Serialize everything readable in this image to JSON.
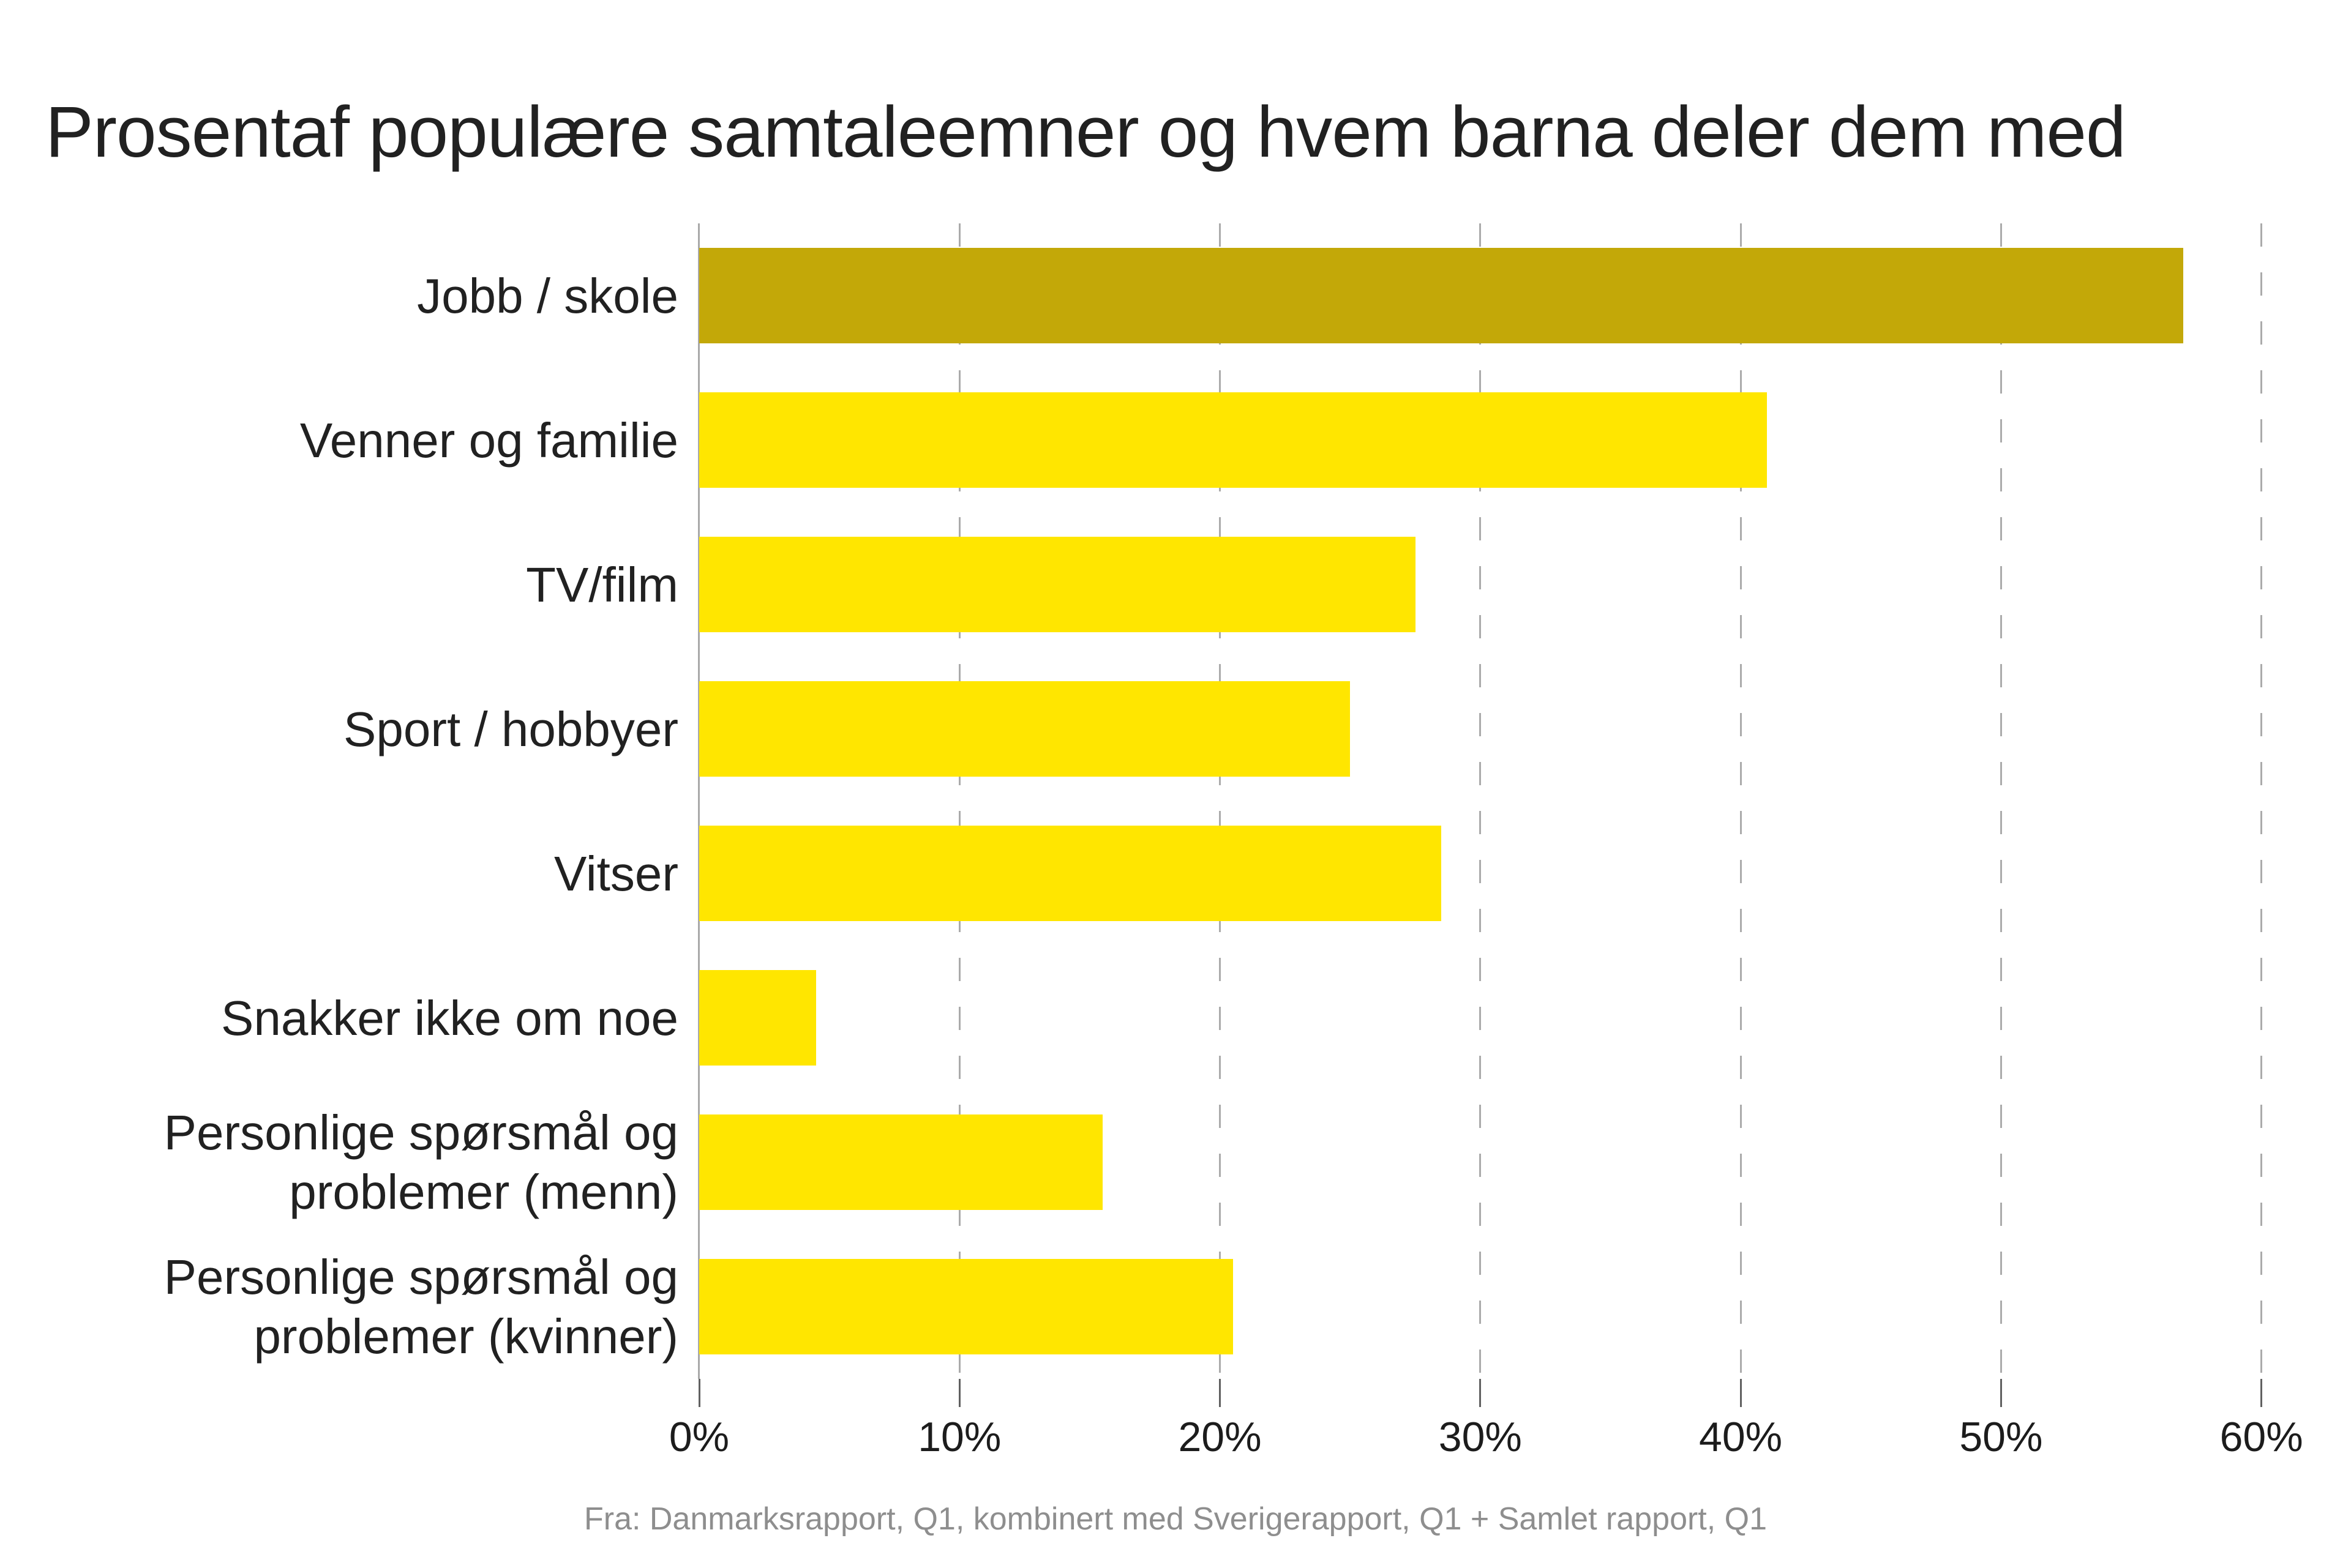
{
  "chart": {
    "title": "Prosentaf populære samtaleemner og hvem barna deler dem med",
    "source": "Fra: Danmarksrapport, Q1, kombinert med Sverigerapport, Q1 + Samlet rapport, Q1"
  },
  "chart_data": {
    "type": "bar",
    "orientation": "horizontal",
    "title": "Prosentaf populære samtaleemner og hvem barna deler dem med",
    "categories": [
      "Jobb / skole",
      "Venner og familie",
      "TV/film",
      "Sport / hobbyer",
      "Vitser",
      "Snakker ikke om noe",
      "Personlige spørsmål og problemer (menn)",
      "Personlige spørsmål og problemer (kvinner)"
    ],
    "category_lines": [
      [
        "Jobb / skole"
      ],
      [
        "Venner og familie"
      ],
      [
        "TV/film"
      ],
      [
        "Sport / hobbyer"
      ],
      [
        "Vitser"
      ],
      [
        "Snakker ikke om noe"
      ],
      [
        "Personlige spørsmål og",
        "problemer (menn)"
      ],
      [
        "Personlige spørsmål og",
        "problemer (kvinner)"
      ]
    ],
    "values": [
      57,
      41,
      27.5,
      25,
      28.5,
      4.5,
      15.5,
      20.5
    ],
    "unit": "%",
    "xlim": [
      0,
      62.5
    ],
    "x_ticks": [
      0,
      10,
      20,
      30,
      40,
      50,
      60
    ],
    "x_tick_labels": [
      "0%",
      "10%",
      "20%",
      "30%",
      "40%",
      "50%",
      "60%"
    ],
    "grid": "vertical-dashed",
    "legend": false,
    "colors": {
      "highlight_bar": "#C3A808",
      "default_bar": "#FFE600",
      "gridline": "#ABABAB",
      "axis_line": "#A9A9A9",
      "tick": "#616161",
      "text": "#212121",
      "source_text": "#8E8E8E"
    },
    "bar_colors": [
      "#C3A808",
      "#FFE600",
      "#FFE600",
      "#FFE600",
      "#FFE600",
      "#FFE600",
      "#FFE600",
      "#FFE600"
    ],
    "source": "Fra: Danmarksrapport, Q1, kombinert med Sverigerapport, Q1 + Samlet rapport, Q1"
  }
}
